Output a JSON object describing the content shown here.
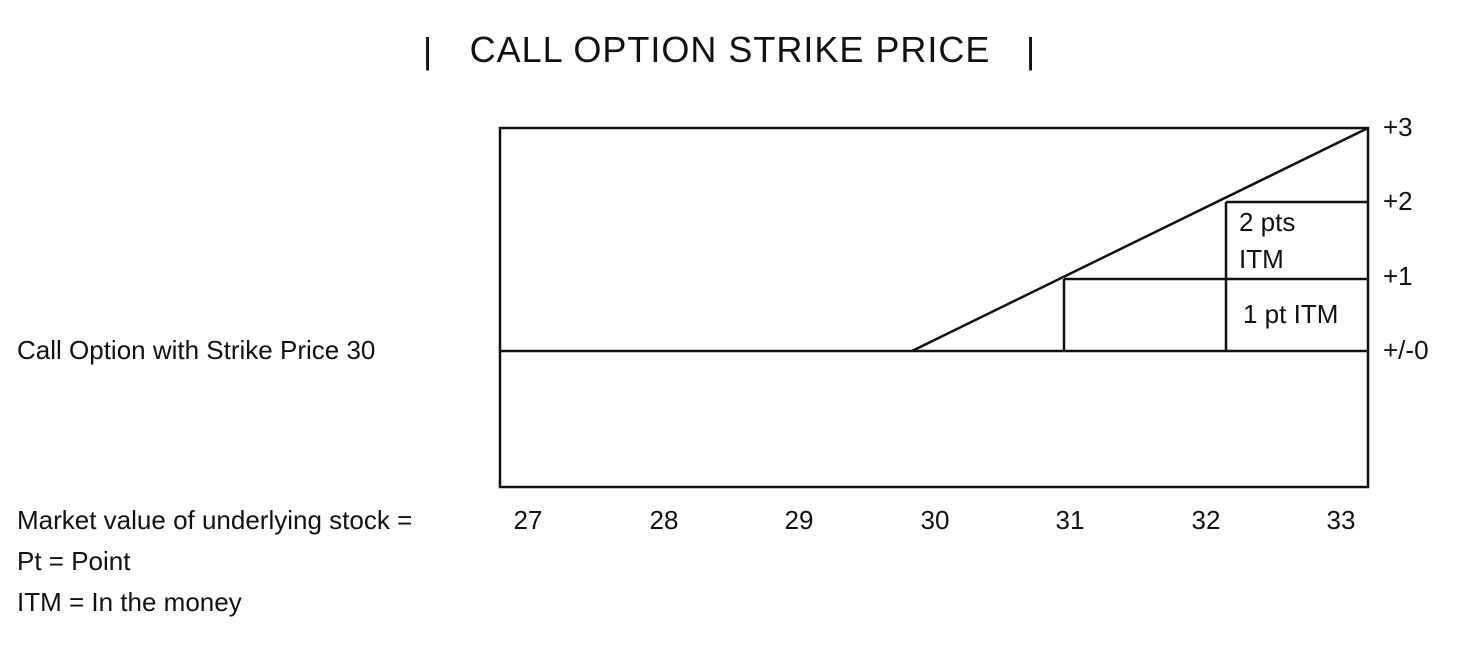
{
  "title": "CALL OPTION STRIKE PRICE",
  "title_bar": "|",
  "row_label": "Call Option with Strike Price 30",
  "x_label": "Market value of underlying stock =",
  "x_ticks": [
    "27",
    "28",
    "29",
    "30",
    "31",
    "32",
    "33"
  ],
  "y_ticks": [
    "+3",
    "+2",
    "+1",
    "+/-0"
  ],
  "region_2pt": {
    "line1": "2 pts",
    "line2": "ITM"
  },
  "region_1pt": "1 pt ITM",
  "legend": [
    "Pt = Point",
    "ITM = In the money"
  ],
  "colors": {
    "line": "#111111",
    "background": "#ffffff"
  }
}
